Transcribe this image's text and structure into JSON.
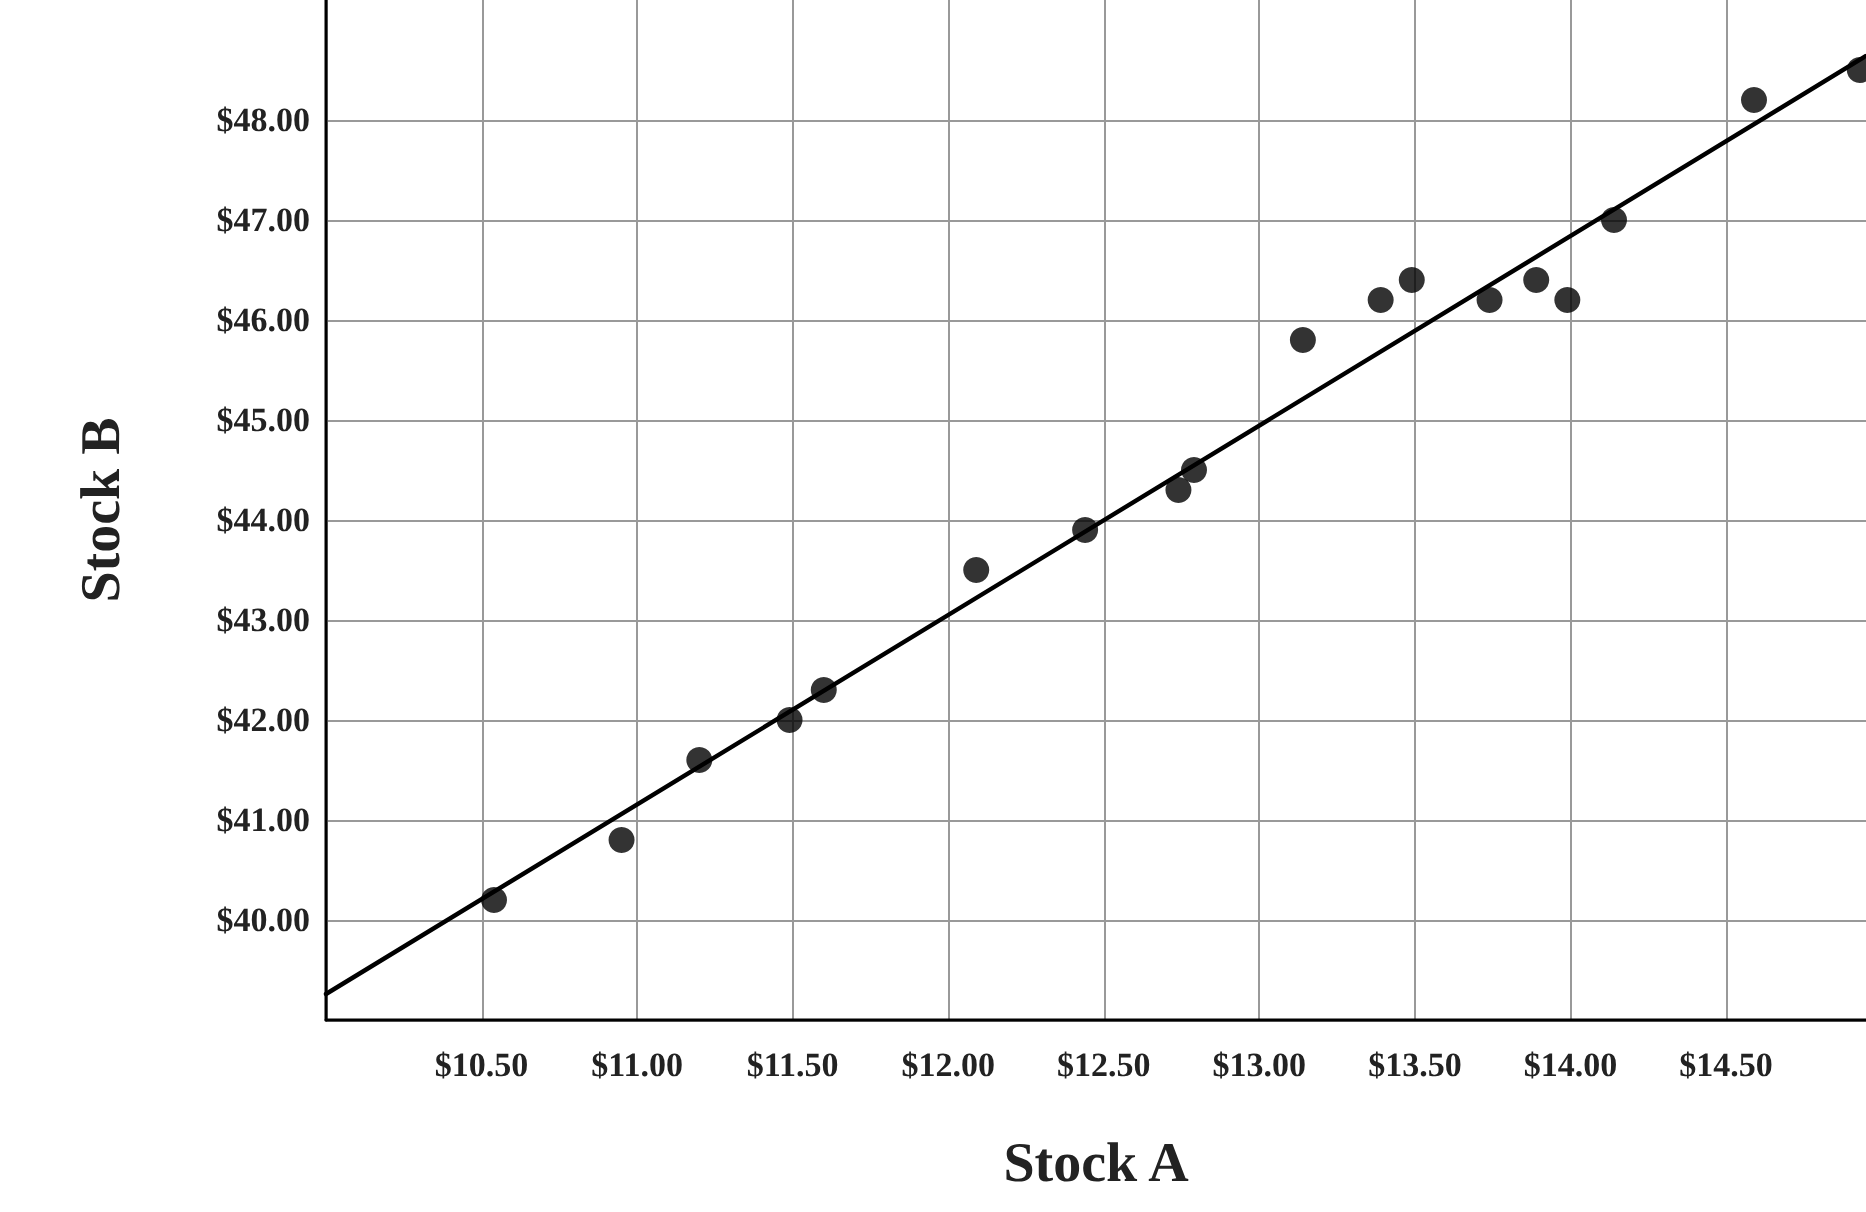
{
  "chart_data": {
    "type": "scatter",
    "xlabel": "Stock A",
    "ylabel": "Stock B",
    "xlim": [
      10,
      14.95
    ],
    "ylim": [
      39,
      49.2
    ],
    "xticks": [
      {
        "value": 10,
        "label": null
      },
      {
        "value": 10.5,
        "label": "$10.50"
      },
      {
        "value": 11,
        "label": "$11.00"
      },
      {
        "value": 11.5,
        "label": "$11.50"
      },
      {
        "value": 12,
        "label": "$12.00"
      },
      {
        "value": 12.5,
        "label": "$12.50"
      },
      {
        "value": 13,
        "label": "$13.00"
      },
      {
        "value": 13.5,
        "label": "$13.50"
      },
      {
        "value": 14,
        "label": "$14.00"
      },
      {
        "value": 14.5,
        "label": "$14.50"
      }
    ],
    "yticks": [
      {
        "value": 39,
        "label": null
      },
      {
        "value": 40,
        "label": "$40.00"
      },
      {
        "value": 41,
        "label": "$41.00"
      },
      {
        "value": 42,
        "label": "$42.00"
      },
      {
        "value": 43,
        "label": "$43.00"
      },
      {
        "value": 44,
        "label": "$44.00"
      },
      {
        "value": 45,
        "label": "$45.00"
      },
      {
        "value": 46,
        "label": "$46.00"
      },
      {
        "value": 47,
        "label": "$47.00"
      },
      {
        "value": 48,
        "label": "$48.00"
      }
    ],
    "grid": true,
    "marker": "circle",
    "series": [
      {
        "color": "#000000",
        "x": [
          10.54,
          10.95,
          11.2,
          11.49,
          11.6,
          12.09,
          12.44,
          12.74,
          12.79,
          13.14,
          13.39,
          13.49,
          13.74,
          13.89,
          13.99,
          14.14,
          14.59,
          14.93
        ],
        "values": [
          40.2,
          40.8,
          41.6,
          42.0,
          42.3,
          43.5,
          43.9,
          44.3,
          44.5,
          45.8,
          46.2,
          46.4,
          46.2,
          46.4,
          46.2,
          47.0,
          48.2,
          48.5
        ]
      },
      {
        "type": "line",
        "color": "#000000",
        "marker": "none",
        "line_style": "solid",
        "x": [
          10,
          14.95
        ],
        "values": [
          39.26,
          48.64
        ]
      }
    ]
  }
}
